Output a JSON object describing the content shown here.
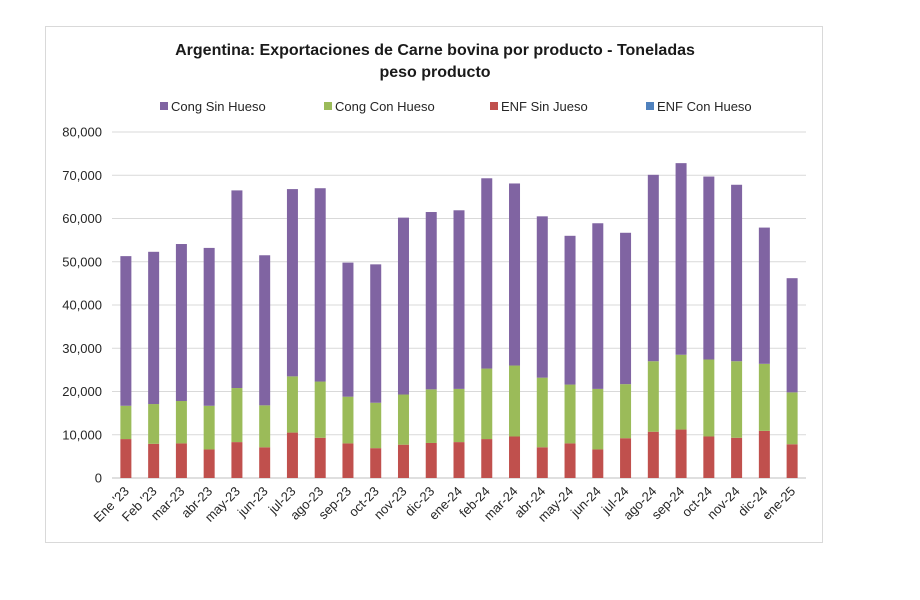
{
  "chart_data": {
    "type": "bar",
    "stacked": true,
    "title_line1": "Argentina: Exportaciones de Carne bovina por producto - Toneladas",
    "title_line2": "peso producto",
    "xlabel": "",
    "ylabel": "",
    "ylim": [
      0,
      80000
    ],
    "yticks": [
      0,
      10000,
      20000,
      30000,
      40000,
      50000,
      60000,
      70000,
      80000
    ],
    "ytick_labels": [
      "0",
      "10,000",
      "20,000",
      "30,000",
      "40,000",
      "50,000",
      "60,000",
      "70,000",
      "80,000"
    ],
    "grid": true,
    "legend_position": "top",
    "categories": [
      "Ene '23",
      "Feb '23",
      "mar-23",
      "abr-23",
      "may-23",
      "jun-23",
      "jul-23",
      "ago-23",
      "sep-23",
      "oct-23",
      "nov-23",
      "dic-23",
      "ene-24",
      "feb-24",
      "mar-24",
      "abr-24",
      "may-24",
      "jun-24",
      "jul-24",
      "ago-24",
      "sep-24",
      "oct-24",
      "nov-24",
      "dic-24",
      "ene-25"
    ],
    "series": [
      {
        "name": "ENF Con Hueso",
        "color": "#4f81bd",
        "values": [
          0,
          0,
          0,
          0,
          0,
          0,
          0,
          0,
          0,
          0,
          0,
          0,
          0,
          0,
          0,
          0,
          0,
          0,
          0,
          0,
          0,
          0,
          0,
          0,
          0
        ]
      },
      {
        "name": "ENF Sin Jueso",
        "color": "#c0504d",
        "values": [
          9000,
          7900,
          8000,
          6600,
          8300,
          7100,
          10500,
          9300,
          8000,
          6900,
          7700,
          8100,
          8300,
          9000,
          9600,
          7100,
          8000,
          6600,
          9200,
          10700,
          11200,
          9600,
          9300,
          10900,
          7800
        ]
      },
      {
        "name": "Cong Con Hueso",
        "color": "#9bbb59",
        "values": [
          7700,
          9200,
          9800,
          10100,
          12500,
          9700,
          13000,
          13000,
          10800,
          10500,
          11600,
          12400,
          12300,
          16300,
          16400,
          16100,
          13600,
          14000,
          12500,
          16300,
          17300,
          17800,
          17700,
          15500,
          12000
        ]
      },
      {
        "name": "Cong Sin Hueso",
        "color": "#8064a2",
        "values": [
          34600,
          35200,
          36300,
          36500,
          45700,
          34700,
          43300,
          44700,
          31000,
          32000,
          40900,
          41000,
          41300,
          44000,
          42100,
          37300,
          34400,
          38300,
          35000,
          43100,
          44300,
          42300,
          40800,
          31500,
          26400
        ]
      }
    ],
    "legend_order": [
      "Cong Sin Hueso",
      "Cong Con Hueso",
      "ENF Sin Jueso",
      "ENF Con Hueso"
    ]
  }
}
